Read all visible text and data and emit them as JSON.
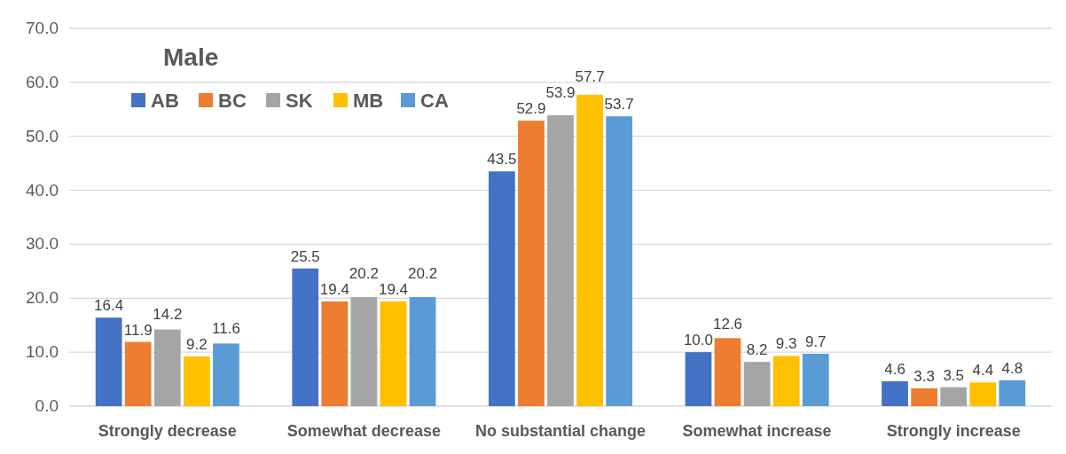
{
  "chart_data": {
    "type": "bar",
    "title": "Male",
    "categories": [
      "Strongly decrease",
      "Somewhat decrease",
      "No substantial change",
      "Somewhat increase",
      "Strongly increase"
    ],
    "series": [
      {
        "name": "AB",
        "color": "#4472c4",
        "values": [
          16.4,
          25.5,
          43.5,
          10.0,
          4.6
        ],
        "value_labels": [
          "16.4",
          "25.5",
          "43.5",
          "10.0",
          "4.6"
        ]
      },
      {
        "name": "BC",
        "color": "#ed7d31",
        "values": [
          11.9,
          19.4,
          52.9,
          12.6,
          3.3
        ],
        "value_labels": [
          "11.9",
          "19.4",
          "52.9",
          "12.6",
          "3.3"
        ]
      },
      {
        "name": "SK",
        "color": "#a5a5a5",
        "values": [
          14.2,
          20.2,
          53.9,
          8.2,
          3.5
        ],
        "value_labels": [
          "14.2",
          "20.2",
          "53.9",
          "8.2",
          "3.5"
        ]
      },
      {
        "name": "MB",
        "color": "#ffc000",
        "values": [
          9.2,
          19.4,
          57.7,
          9.3,
          4.4
        ],
        "value_labels": [
          "9.2",
          "19.4",
          "57.7",
          "9.3",
          "4.4"
        ]
      },
      {
        "name": "CA",
        "color": "#5b9bd5",
        "values": [
          11.6,
          20.2,
          53.7,
          9.7,
          4.8
        ],
        "value_labels": [
          "11.6",
          "20.2",
          "53.7",
          "9.7",
          "4.8"
        ]
      }
    ],
    "ylim": [
      0,
      70
    ],
    "yticks": [
      {
        "value": 0,
        "label": "0.0"
      },
      {
        "value": 10,
        "label": "10.0"
      },
      {
        "value": 20,
        "label": "20.0"
      },
      {
        "value": 30,
        "label": "30.0"
      },
      {
        "value": 40,
        "label": "40.0"
      },
      {
        "value": 50,
        "label": "50.0"
      },
      {
        "value": 60,
        "label": "60.0"
      },
      {
        "value": 70,
        "label": "70.0"
      }
    ],
    "grid": "y",
    "legend": "top left"
  }
}
